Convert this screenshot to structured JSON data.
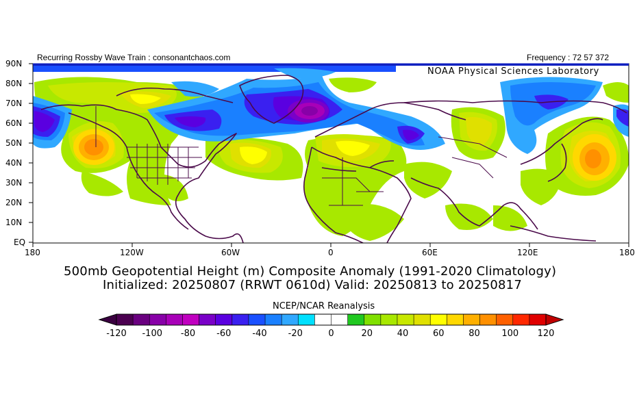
{
  "header": {
    "left_text": "Recurring Rossby Wave Train : consonantchaos.com",
    "right_text": "Frequency : 72 57 372",
    "lab_text": "NOAA Physical Sciences Laboratory"
  },
  "axes": {
    "y_labels": [
      "90N",
      "80N",
      "70N",
      "60N",
      "50N",
      "40N",
      "30N",
      "20N",
      "10N",
      "EQ"
    ],
    "x_labels": [
      "180",
      "120W",
      "60W",
      "0",
      "60E",
      "120E",
      "180"
    ]
  },
  "titles": {
    "line1": "500mb Geopotential Height (m) Composite Anomaly (1991-2020 Climatology)",
    "line2": "Initialized: 20250807 (RRWT 0610d) Valid: 20250813 to 20250817"
  },
  "colorbar": {
    "credit": "NCEP/NCAR Reanalysis",
    "tick_labels": [
      "-120",
      "-100",
      "-80",
      "-60",
      "-40",
      "-20",
      "0",
      "20",
      "40",
      "60",
      "80",
      "100",
      "120"
    ],
    "bin_colors": [
      "#4b0050",
      "#6a0080",
      "#8800a8",
      "#a800b8",
      "#c000c0",
      "#7a00c8",
      "#5a00e0",
      "#3a20f0",
      "#1a50ff",
      "#1a80ff",
      "#30a8ff",
      "#00e0ff",
      "#ffffff",
      "#ffffff",
      "#20c820",
      "#80e000",
      "#a8e800",
      "#c8e800",
      "#e0e000",
      "#ffff00",
      "#ffd800",
      "#ffb000",
      "#ff9000",
      "#ff6000",
      "#ff2800",
      "#e00000"
    ],
    "under_color": "#3a0040",
    "over_color": "#c00000"
  },
  "palette": {
    "land_outline": "#4a0a4a",
    "frame": "#000000",
    "polar_bar": "#1020c0"
  }
}
